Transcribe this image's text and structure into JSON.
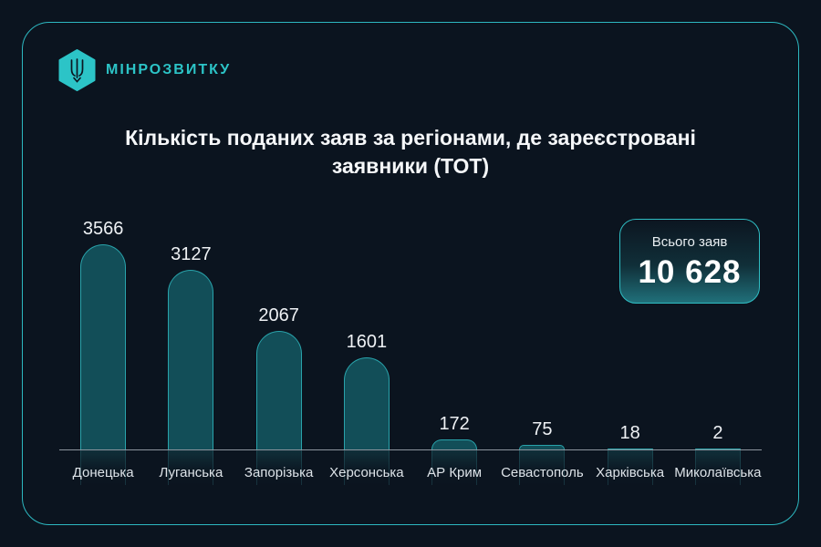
{
  "brand": {
    "name": "МІНРОЗВИТКУ",
    "logo_icon": "tryzub-hexagon-icon"
  },
  "header": {
    "title": "Кількість поданих заяв за регіонами, де зареєстровані заявники (ТОТ)"
  },
  "total_badge": {
    "label": "Всього заяв",
    "value": "10 628"
  },
  "colors": {
    "background": "#0b141f",
    "accent_teal": "#2cc4c7",
    "frame_border": "#2db8c0",
    "bar_fill": "#124e58",
    "bar_border": "#29a3ab",
    "axis_line": "#8d949d",
    "title_text": "#f5f7f9",
    "label_text": "#dde3e8",
    "badge_gradient_bottom": "#20707a"
  },
  "chart_data": {
    "type": "bar",
    "title": "Кількість поданих заяв за регіонами, де зареєстровані заявники (ТОТ)",
    "categories": [
      "Донецька",
      "Луганська",
      "Запорізька",
      "Херсонська",
      "АР Крим",
      "Севастополь",
      "Харківська",
      "Миколаївська"
    ],
    "values": [
      3566,
      3127,
      2067,
      1601,
      172,
      75,
      18,
      2
    ],
    "value_labels": [
      "3566",
      "3127",
      "2067",
      "1601",
      "172",
      "75",
      "18",
      "2"
    ],
    "total": 10628,
    "total_label": "Всього заяв",
    "xlabel": "",
    "ylabel": "",
    "ylim": [
      0,
      3566
    ],
    "grid": false,
    "legend": false,
    "bar_style": "rounded-top-outline",
    "orientation": "vertical"
  }
}
